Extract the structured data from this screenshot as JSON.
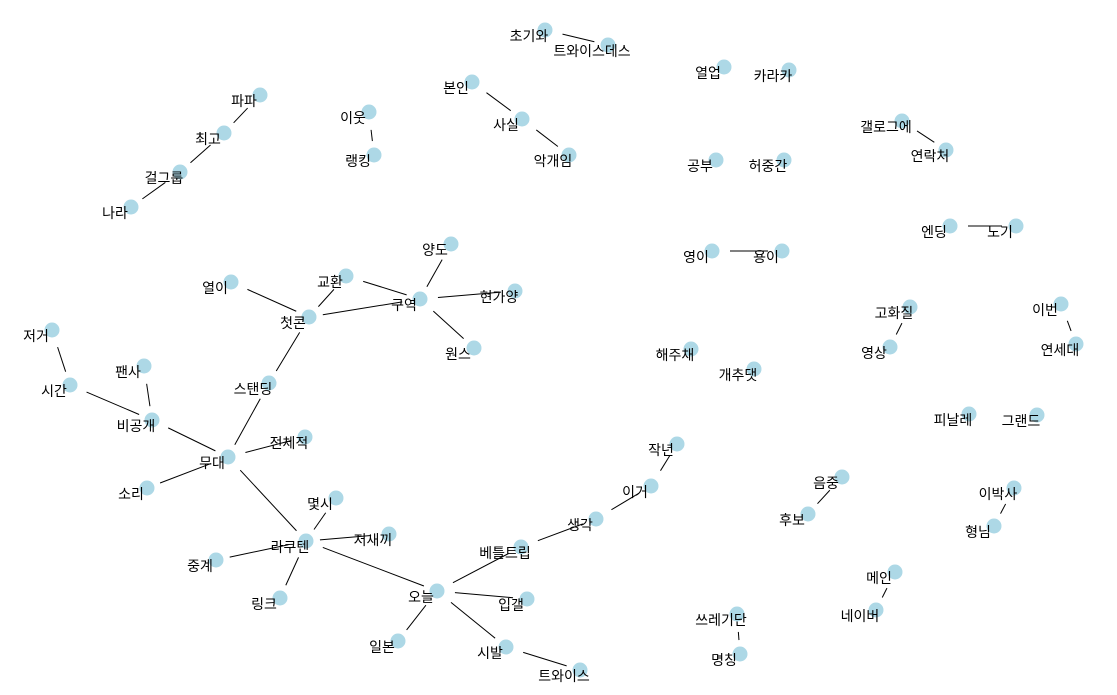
{
  "colors": {
    "background": "#ffffff",
    "node": "#add8e6",
    "edge": "#000000",
    "label": "#000000"
  },
  "graph": {
    "type": "word-network",
    "nodes": [
      {
        "id": "n1",
        "label": "초기와"
      },
      {
        "id": "n2",
        "label": "트와이스데스"
      },
      {
        "id": "n3",
        "label": "본인"
      },
      {
        "id": "n4",
        "label": "사실"
      },
      {
        "id": "n5",
        "label": "악개임"
      },
      {
        "id": "n6",
        "label": "이웃"
      },
      {
        "id": "n7",
        "label": "랭킹"
      },
      {
        "id": "n8",
        "label": "파파"
      },
      {
        "id": "n9",
        "label": "최고"
      },
      {
        "id": "n10",
        "label": "걸그룹"
      },
      {
        "id": "n11",
        "label": "나라"
      },
      {
        "id": "n12",
        "label": "열업"
      },
      {
        "id": "n13",
        "label": "카라카"
      },
      {
        "id": "n14",
        "label": "갤로그에"
      },
      {
        "id": "n15",
        "label": "연락처"
      },
      {
        "id": "n16",
        "label": "공부"
      },
      {
        "id": "n17",
        "label": "허중간"
      },
      {
        "id": "n18",
        "label": "엔딩"
      },
      {
        "id": "n19",
        "label": "노기"
      },
      {
        "id": "n20",
        "label": "영이"
      },
      {
        "id": "n21",
        "label": "용이"
      },
      {
        "id": "n22",
        "label": "양도"
      },
      {
        "id": "n23",
        "label": "교환"
      },
      {
        "id": "n24",
        "label": "열이"
      },
      {
        "id": "n25",
        "label": "구역"
      },
      {
        "id": "n26",
        "label": "현가양"
      },
      {
        "id": "n27",
        "label": "첫콘"
      },
      {
        "id": "n28",
        "label": "원스"
      },
      {
        "id": "n29",
        "label": "저거"
      },
      {
        "id": "n30",
        "label": "시간"
      },
      {
        "id": "n31",
        "label": "팬사"
      },
      {
        "id": "n32",
        "label": "비공개"
      },
      {
        "id": "n33",
        "label": "스탠딩"
      },
      {
        "id": "n34",
        "label": "무대"
      },
      {
        "id": "n35",
        "label": "전체적"
      },
      {
        "id": "n36",
        "label": "소리"
      },
      {
        "id": "n37",
        "label": "몇시"
      },
      {
        "id": "n38",
        "label": "저새끼"
      },
      {
        "id": "n39",
        "label": "라쿠텐"
      },
      {
        "id": "n40",
        "label": "중계"
      },
      {
        "id": "n41",
        "label": "링크"
      },
      {
        "id": "n42",
        "label": "오늘"
      },
      {
        "id": "n43",
        "label": "베틀트립"
      },
      {
        "id": "n44",
        "label": "입갤"
      },
      {
        "id": "n45",
        "label": "일본"
      },
      {
        "id": "n46",
        "label": "시발"
      },
      {
        "id": "n47",
        "label": "트와이스"
      },
      {
        "id": "n48",
        "label": "생각"
      },
      {
        "id": "n49",
        "label": "이거"
      },
      {
        "id": "n50",
        "label": "작년"
      },
      {
        "id": "n51",
        "label": "해주채"
      },
      {
        "id": "n52",
        "label": "개추댓"
      },
      {
        "id": "n53",
        "label": "고화질"
      },
      {
        "id": "n54",
        "label": "영상"
      },
      {
        "id": "n55",
        "label": "이번"
      },
      {
        "id": "n56",
        "label": "연세대"
      },
      {
        "id": "n57",
        "label": "피날레"
      },
      {
        "id": "n58",
        "label": "그랜드"
      },
      {
        "id": "n59",
        "label": "음중"
      },
      {
        "id": "n60",
        "label": "후보"
      },
      {
        "id": "n61",
        "label": "이박사"
      },
      {
        "id": "n62",
        "label": "형님"
      },
      {
        "id": "n63",
        "label": "메인"
      },
      {
        "id": "n64",
        "label": "네이버"
      },
      {
        "id": "n65",
        "label": "쓰레기단"
      },
      {
        "id": "n66",
        "label": "명칭"
      }
    ],
    "edges": [
      [
        "n1",
        "n2"
      ],
      [
        "n3",
        "n4"
      ],
      [
        "n4",
        "n5"
      ],
      [
        "n6",
        "n7"
      ],
      [
        "n8",
        "n9"
      ],
      [
        "n9",
        "n10"
      ],
      [
        "n10",
        "n11"
      ],
      [
        "n14",
        "n15"
      ],
      [
        "n18",
        "n19"
      ],
      [
        "n20",
        "n21"
      ],
      [
        "n22",
        "n25"
      ],
      [
        "n23",
        "n25"
      ],
      [
        "n23",
        "n27"
      ],
      [
        "n24",
        "n27"
      ],
      [
        "n25",
        "n26"
      ],
      [
        "n25",
        "n27"
      ],
      [
        "n25",
        "n28"
      ],
      [
        "n27",
        "n33"
      ],
      [
        "n29",
        "n30"
      ],
      [
        "n30",
        "n32"
      ],
      [
        "n31",
        "n32"
      ],
      [
        "n32",
        "n34"
      ],
      [
        "n33",
        "n34"
      ],
      [
        "n34",
        "n35"
      ],
      [
        "n34",
        "n36"
      ],
      [
        "n34",
        "n39"
      ],
      [
        "n37",
        "n39"
      ],
      [
        "n38",
        "n39"
      ],
      [
        "n39",
        "n40"
      ],
      [
        "n39",
        "n41"
      ],
      [
        "n39",
        "n42"
      ],
      [
        "n42",
        "n43"
      ],
      [
        "n42",
        "n44"
      ],
      [
        "n42",
        "n45"
      ],
      [
        "n42",
        "n46"
      ],
      [
        "n46",
        "n47"
      ],
      [
        "n43",
        "n48"
      ],
      [
        "n48",
        "n49"
      ],
      [
        "n49",
        "n50"
      ],
      [
        "n53",
        "n54"
      ],
      [
        "n55",
        "n56"
      ],
      [
        "n59",
        "n60"
      ],
      [
        "n61",
        "n62"
      ],
      [
        "n63",
        "n64"
      ],
      [
        "n65",
        "n66"
      ]
    ]
  }
}
